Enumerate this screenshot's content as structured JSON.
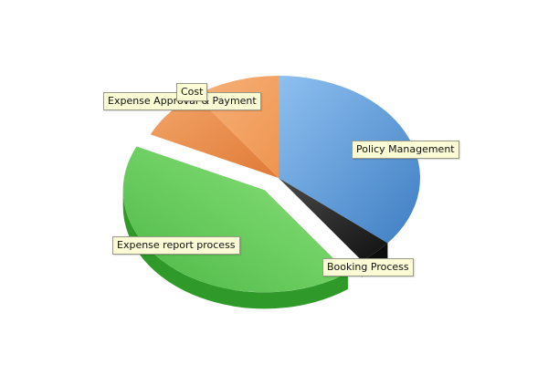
{
  "chart_data": {
    "type": "pie",
    "title": "",
    "style": "3d-exploded",
    "legend": "none",
    "slices": [
      {
        "label": "Policy Management",
        "value": 36,
        "color": "#4f8fd4"
      },
      {
        "label": "Booking Process",
        "value": 4,
        "color": "#2a2a2a"
      },
      {
        "label": "Expense report process",
        "value": 42,
        "color": "#5fcd57"
      },
      {
        "label": "Expense Approval & Payment",
        "value": 8,
        "color": "#e6813f"
      },
      {
        "label": "Cost",
        "value": 10,
        "color": "#f09a55"
      }
    ]
  }
}
